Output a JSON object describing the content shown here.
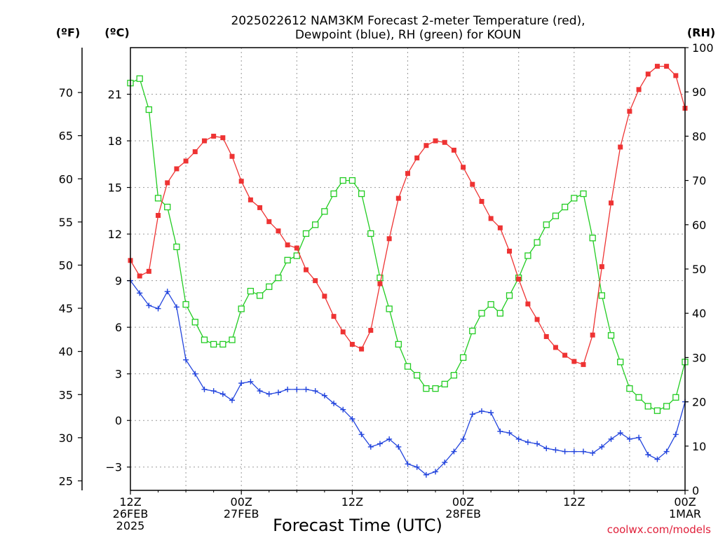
{
  "chart_data": {
    "type": "line",
    "title": [
      "2025022612 NAM3KM Forecast 2-meter Temperature (red),",
      "Dewpoint (blue), RH (green) for KOUN"
    ],
    "xlabel": "Forecast Time (UTC)",
    "credit": "coolwx.com/models",
    "x_ticks": [
      {
        "t": 0,
        "lines": [
          "12Z",
          "26FEB",
          "2025"
        ]
      },
      {
        "t": 12,
        "lines": [
          "00Z",
          "27FEB"
        ]
      },
      {
        "t": 24,
        "lines": [
          "12Z"
        ]
      },
      {
        "t": 36,
        "lines": [
          "00Z",
          "28FEB"
        ]
      },
      {
        "t": 48,
        "lines": [
          "12Z"
        ]
      },
      {
        "t": 60,
        "lines": [
          "00Z",
          "1MAR"
        ]
      }
    ],
    "xlim": [
      0,
      60
    ],
    "y_celsius": {
      "label": "(ºC)",
      "ylim": [
        -4.5,
        24
      ],
      "ticks": [
        -3,
        0,
        3,
        6,
        9,
        12,
        15,
        18,
        21
      ]
    },
    "y_fahrenheit": {
      "label": "(ºF)",
      "ticks": [
        25,
        30,
        35,
        40,
        45,
        50,
        55,
        60,
        65,
        70
      ]
    },
    "y_rh": {
      "label": "(RH)",
      "ylim": [
        0,
        100
      ],
      "ticks": [
        0,
        10,
        20,
        30,
        40,
        50,
        60,
        70,
        80,
        90,
        100
      ]
    },
    "grid": true,
    "series": [
      {
        "key": "temperature",
        "color": "#ee3333",
        "marker": "filled-square",
        "axis": "celsius",
        "x": [
          0,
          1,
          2,
          3,
          4,
          5,
          6,
          7,
          8,
          9,
          10,
          11,
          12,
          13,
          14,
          15,
          16,
          17,
          18,
          19,
          20,
          21,
          22,
          23,
          24,
          25,
          26,
          27,
          28,
          29,
          30,
          31,
          32,
          33,
          34,
          35,
          36,
          37,
          38,
          39,
          40,
          41,
          42,
          43,
          44,
          45,
          46,
          47,
          48,
          49,
          50,
          51,
          52,
          53,
          54,
          55,
          56,
          57,
          58,
          59,
          60
        ],
        "values": [
          10.3,
          9.3,
          9.6,
          13.2,
          15.3,
          16.2,
          16.7,
          17.3,
          18.0,
          18.3,
          18.2,
          17.0,
          15.4,
          14.2,
          13.7,
          12.8,
          12.2,
          11.3,
          11.1,
          9.7,
          9.0,
          8.0,
          6.7,
          5.7,
          4.9,
          4.6,
          5.8,
          8.8,
          11.7,
          14.3,
          15.9,
          16.9,
          17.7,
          18.0,
          17.9,
          17.4,
          16.3,
          15.2,
          14.1,
          13.0,
          12.4,
          10.9,
          9.1,
          7.5,
          6.5,
          5.4,
          4.7,
          4.2,
          3.8,
          3.6,
          5.5,
          9.9,
          14.0,
          17.6,
          19.9,
          21.3,
          22.3,
          22.8,
          22.8,
          22.2,
          20.1
        ]
      },
      {
        "key": "dewpoint",
        "color": "#2244dd",
        "marker": "plus",
        "axis": "celsius",
        "x": [
          0,
          1,
          2,
          3,
          4,
          5,
          6,
          7,
          8,
          9,
          10,
          11,
          12,
          13,
          14,
          15,
          16,
          17,
          18,
          19,
          20,
          21,
          22,
          23,
          24,
          25,
          26,
          27,
          28,
          29,
          30,
          31,
          32,
          33,
          34,
          35,
          36,
          37,
          38,
          39,
          40,
          41,
          42,
          43,
          44,
          45,
          46,
          47,
          48,
          49,
          50,
          51,
          52,
          53,
          54,
          55,
          56,
          57,
          58,
          59,
          60
        ],
        "values": [
          9.0,
          8.2,
          7.4,
          7.2,
          8.3,
          7.3,
          3.9,
          3.0,
          2.0,
          1.9,
          1.7,
          1.3,
          2.4,
          2.5,
          1.9,
          1.7,
          1.8,
          2.0,
          2.0,
          2.0,
          1.9,
          1.6,
          1.1,
          0.7,
          0.1,
          -0.9,
          -1.7,
          -1.5,
          -1.2,
          -1.7,
          -2.8,
          -3.0,
          -3.5,
          -3.3,
          -2.7,
          -2.0,
          -1.2,
          0.4,
          0.6,
          0.5,
          -0.7,
          -0.8,
          -1.2,
          -1.4,
          -1.5,
          -1.8,
          -1.9,
          -2.0,
          -2.0,
          -2.0,
          -2.1,
          -1.7,
          -1.2,
          -0.8,
          -1.2,
          -1.1,
          -2.2,
          -2.5,
          -2.0,
          -0.9,
          1.2
        ]
      },
      {
        "key": "rh",
        "color": "#22cc22",
        "marker": "open-square",
        "axis": "rh",
        "x": [
          0,
          1,
          2,
          3,
          4,
          5,
          6,
          7,
          8,
          9,
          10,
          11,
          12,
          13,
          14,
          15,
          16,
          17,
          18,
          19,
          20,
          21,
          22,
          23,
          24,
          25,
          26,
          27,
          28,
          29,
          30,
          31,
          32,
          33,
          34,
          35,
          36,
          37,
          38,
          39,
          40,
          41,
          42,
          43,
          44,
          45,
          46,
          47,
          48,
          49,
          50,
          51,
          52,
          53,
          54,
          55,
          56,
          57,
          58,
          59,
          60
        ],
        "values": [
          92,
          93,
          86,
          66,
          64,
          55,
          42,
          38,
          34,
          33,
          33,
          34,
          41,
          45,
          44,
          46,
          48,
          52,
          53,
          58,
          60,
          63,
          67,
          70,
          70,
          67,
          58,
          48,
          41,
          33,
          28,
          26,
          23,
          23,
          24,
          26,
          30,
          36,
          40,
          42,
          40,
          44,
          48,
          53,
          56,
          60,
          62,
          64,
          66,
          67,
          57,
          44,
          35,
          29,
          23,
          21,
          19,
          18,
          19,
          21,
          29
        ]
      }
    ]
  }
}
